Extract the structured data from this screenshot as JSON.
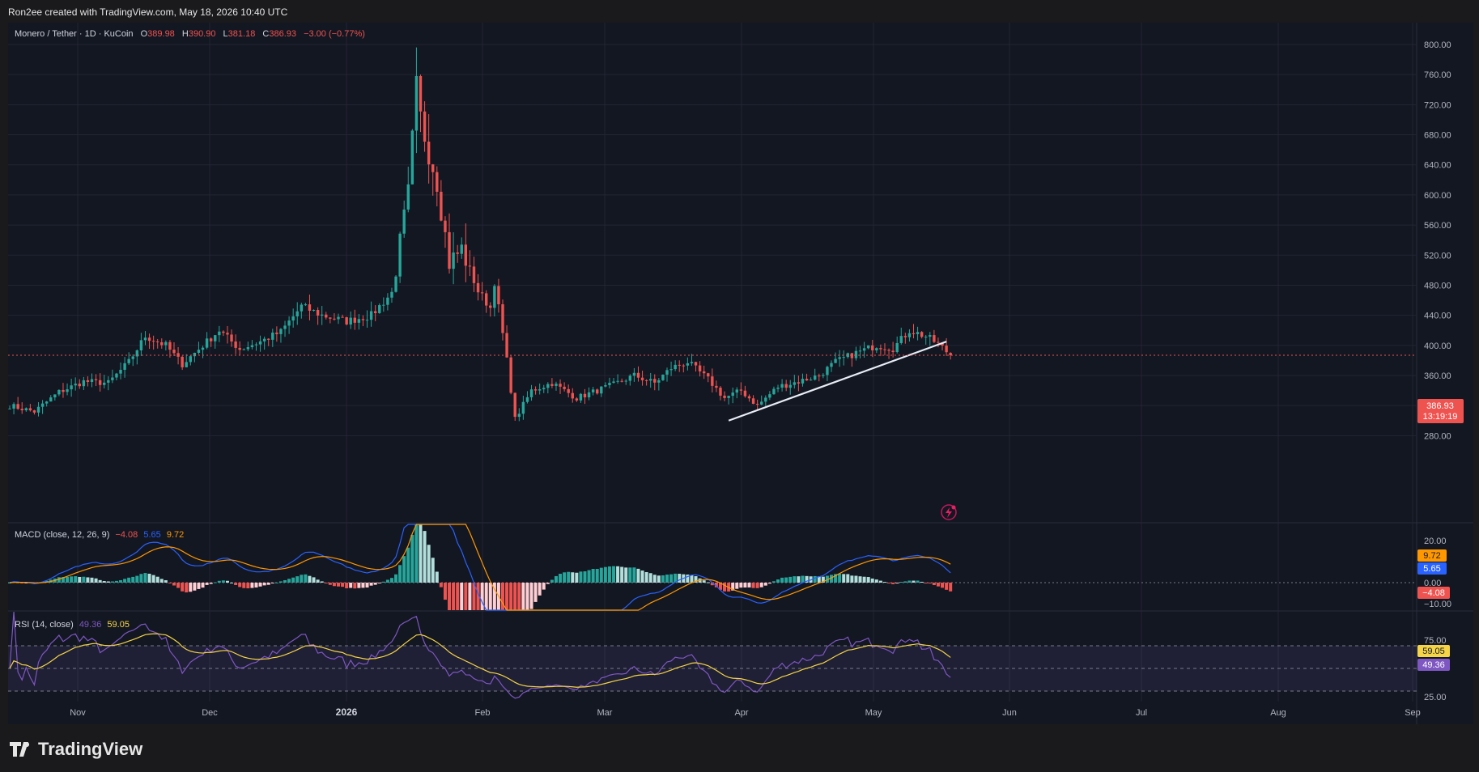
{
  "watermark": "Ron2ee created with TradingView.com, May 18, 2026 10:40 UTC",
  "brand": "TradingView",
  "legend": {
    "symbol": "Monero / Tether · 1D · KuCoin",
    "o_label": "O",
    "o": "389.98",
    "h_label": "H",
    "h": "390.90",
    "l_label": "L",
    "l": "381.18",
    "c_label": "C",
    "c": "386.93",
    "change": "−3.00 (−0.77%)"
  },
  "price_badge": {
    "price": "386.93",
    "countdown": "13:19:19"
  },
  "macd": {
    "label": "MACD (close, 12, 26, 9)",
    "hist": "−4.08",
    "macd": "5.65",
    "signal": "9.72"
  },
  "rsi": {
    "label": "RSI (14, close)",
    "rsi": "49.36",
    "ma": "59.05"
  },
  "colors": {
    "up": "#26a69a",
    "down": "#ef5350",
    "bg": "#131722",
    "grid": "#232632"
  },
  "chart_data": {
    "type": "candlestick",
    "title": "Monero / Tether · 1D · KuCoin",
    "y_ticks": [
      "800.00",
      "760.00",
      "720.00",
      "680.00",
      "640.00",
      "600.00",
      "560.00",
      "520.00",
      "480.00",
      "440.00",
      "400.00",
      "360.00",
      "320.00",
      "280.00"
    ],
    "y_range": [
      268,
      805
    ],
    "x_labels": [
      "Nov",
      "Dec",
      "2026",
      "Feb",
      "Mar",
      "Apr",
      "May",
      "Jun",
      "Jul",
      "Aug",
      "Sep"
    ],
    "last_price": 386.93,
    "price_anchors": [
      {
        "day": 0,
        "price": 320
      },
      {
        "day": 6,
        "price": 312
      },
      {
        "day": 12,
        "price": 338
      },
      {
        "day": 18,
        "price": 352
      },
      {
        "day": 24,
        "price": 350
      },
      {
        "day": 29,
        "price": 378
      },
      {
        "day": 33,
        "price": 412
      },
      {
        "day": 38,
        "price": 400
      },
      {
        "day": 42,
        "price": 375
      },
      {
        "day": 47,
        "price": 400
      },
      {
        "day": 51,
        "price": 420
      },
      {
        "day": 56,
        "price": 395
      },
      {
        "day": 61,
        "price": 405
      },
      {
        "day": 66,
        "price": 418
      },
      {
        "day": 71,
        "price": 452
      },
      {
        "day": 76,
        "price": 440
      },
      {
        "day": 82,
        "price": 432
      },
      {
        "day": 88,
        "price": 440
      },
      {
        "day": 93,
        "price": 470
      },
      {
        "day": 97,
        "price": 600
      },
      {
        "day": 99,
        "price": 740
      },
      {
        "day": 100,
        "price": 700
      },
      {
        "day": 102,
        "price": 660
      },
      {
        "day": 104,
        "price": 620
      },
      {
        "day": 107,
        "price": 510
      },
      {
        "day": 110,
        "price": 528
      },
      {
        "day": 114,
        "price": 472
      },
      {
        "day": 117,
        "price": 450
      },
      {
        "day": 118,
        "price": 485
      },
      {
        "day": 121,
        "price": 380
      },
      {
        "day": 123,
        "price": 302
      },
      {
        "day": 127,
        "price": 340
      },
      {
        "day": 132,
        "price": 350
      },
      {
        "day": 138,
        "price": 330
      },
      {
        "day": 143,
        "price": 340
      },
      {
        "day": 147,
        "price": 348
      },
      {
        "day": 152,
        "price": 360
      },
      {
        "day": 157,
        "price": 350
      },
      {
        "day": 161,
        "price": 370
      },
      {
        "day": 165,
        "price": 378
      },
      {
        "day": 170,
        "price": 355
      },
      {
        "day": 174,
        "price": 330
      },
      {
        "day": 178,
        "price": 340
      },
      {
        "day": 182,
        "price": 320
      },
      {
        "day": 187,
        "price": 345
      },
      {
        "day": 192,
        "price": 352
      },
      {
        "day": 197,
        "price": 360
      },
      {
        "day": 201,
        "price": 378
      },
      {
        "day": 206,
        "price": 390
      },
      {
        "day": 211,
        "price": 400
      },
      {
        "day": 215,
        "price": 396
      },
      {
        "day": 219,
        "price": 420
      },
      {
        "day": 223,
        "price": 412
      },
      {
        "day": 226,
        "price": 402
      },
      {
        "day": 229,
        "price": 386.93
      }
    ],
    "trendline": [
      {
        "day": 175,
        "price": 300
      },
      {
        "day": 228,
        "price": 405
      }
    ],
    "macd_ticks": [
      "20.00",
      "0.00",
      "−10.00"
    ],
    "rsi_ticks": [
      "75.00",
      "25.00"
    ],
    "rsi_bands": [
      70,
      50,
      30
    ]
  }
}
